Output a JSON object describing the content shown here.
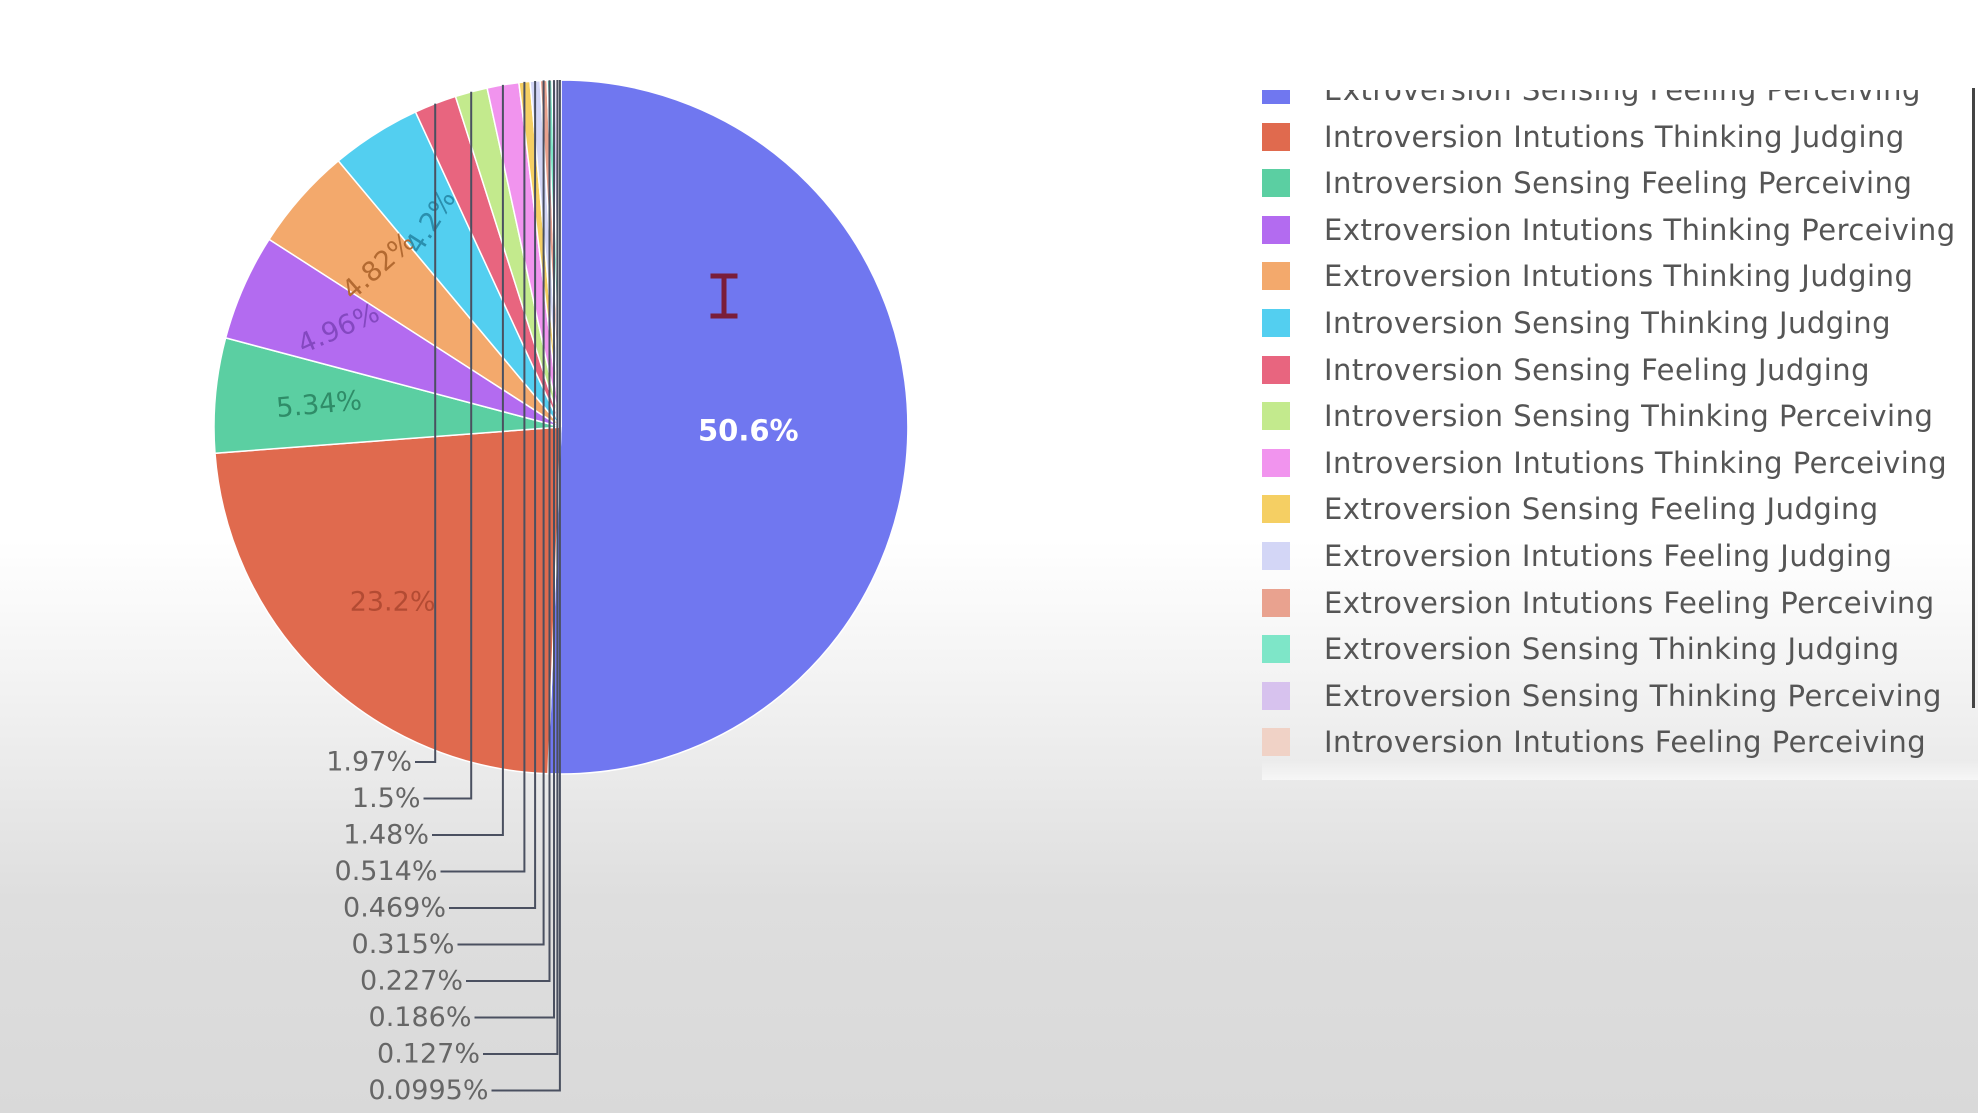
{
  "chart_data": {
    "type": "pie",
    "title": "",
    "slices": [
      {
        "label": "Extroversion Sensing Feeling Perceiving",
        "value": 50.6,
        "value_label": "50.6%",
        "color": "#7077f0",
        "text_color": "#ffffff"
      },
      {
        "label": "Introversion Intutions Thinking Judging",
        "value": 23.2,
        "value_label": "23.2%",
        "color": "#e06a4e",
        "text_color": "#b34b33"
      },
      {
        "label": "Introversion Sensing Feeling Perceiving",
        "value": 5.34,
        "value_label": "5.34%",
        "color": "#5bcfa2",
        "text_color": "#2f8c68"
      },
      {
        "label": "Extroversion Intutions Thinking Perceiving",
        "value": 4.96,
        "value_label": "4.96%",
        "color": "#b36bf0",
        "text_color": "#8448c0"
      },
      {
        "label": "Extroversion Intutions Thinking Judging",
        "value": 4.82,
        "value_label": "4.82%",
        "color": "#f3a96c",
        "text_color": "#b36a31"
      },
      {
        "label": "Introversion Sensing Thinking Judging",
        "value": 4.2,
        "value_label": "4.2%",
        "color": "#53cff0",
        "text_color": "#2a8fae"
      },
      {
        "label": "Introversion Sensing Feeling Judging",
        "value": 1.97,
        "value_label": "1.97%",
        "color": "#e8657f",
        "text_color": "#666666"
      },
      {
        "label": "Introversion Sensing Thinking Perceiving",
        "value": 1.5,
        "value_label": "1.5%",
        "color": "#c3ea8d",
        "text_color": "#666666"
      },
      {
        "label": "Introversion Intutions Thinking Perceiving",
        "value": 1.48,
        "value_label": "1.48%",
        "color": "#f194ee",
        "text_color": "#666666"
      },
      {
        "label": "Extroversion Sensing Feeling Judging",
        "value": 0.514,
        "value_label": "0.514%",
        "color": "#f5cf63",
        "text_color": "#666666"
      },
      {
        "label": "Extroversion Intutions Feeling Judging",
        "value": 0.469,
        "value_label": "0.469%",
        "color": "#d3d6f6",
        "text_color": "#666666"
      },
      {
        "label": "Extroversion Intutions Feeling Perceiving",
        "value": 0.315,
        "value_label": "0.315%",
        "color": "#e9a28f",
        "text_color": "#666666"
      },
      {
        "label": "Extroversion Sensing Thinking Judging",
        "value": 0.227,
        "value_label": "0.227%",
        "color": "#7ee6c8",
        "text_color": "#666666"
      },
      {
        "label": "Extroversion Sensing Thinking Perceiving",
        "value": 0.186,
        "value_label": "0.186%",
        "color": "#d7c2ee",
        "text_color": "#666666"
      },
      {
        "label": "Introversion Intutions Feeling Perceiving",
        "value": 0.127,
        "value_label": "0.127%",
        "color": "#f0d2c6",
        "text_color": "#666666"
      },
      {
        "label": "",
        "value": 0.0995,
        "value_label": "0.0995%",
        "color": "#cfd6ec",
        "text_color": "#666666"
      }
    ],
    "legend": {
      "placement": "right"
    }
  },
  "cursor": {
    "icon": "text-cursor-icon"
  }
}
